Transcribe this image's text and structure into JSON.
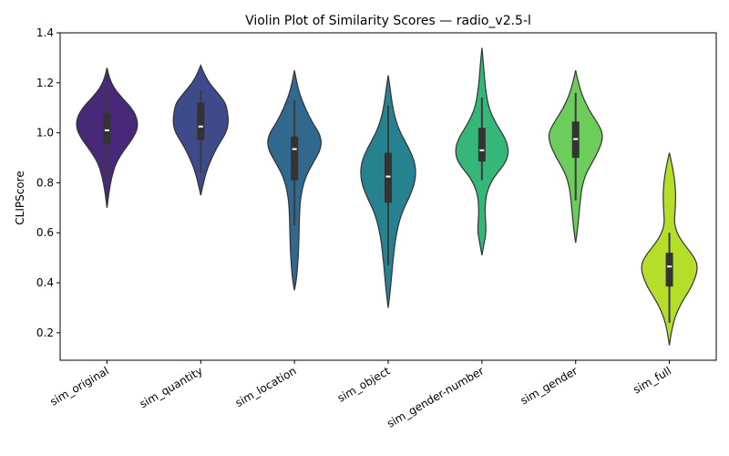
{
  "chart_data": {
    "type": "violin",
    "title": "Violin Plot of Similarity Scores — radio_v2.5-l",
    "xlabel": "",
    "ylabel": "CLIPScore",
    "ylim": [
      0.09,
      1.4
    ],
    "yticks": [
      0.2,
      0.4,
      0.6,
      0.8,
      1.0,
      1.2,
      1.4
    ],
    "ytick_labels": [
      "0.2",
      "0.4",
      "0.6",
      "0.8",
      "1.0",
      "1.2",
      "1.4"
    ],
    "grid": false,
    "legend": "none",
    "categories": [
      "sim_original",
      "sim_quantity",
      "sim_location",
      "sim_object",
      "sim_gender-number",
      "sim_gender",
      "sim_full"
    ],
    "colors": [
      "#482878",
      "#3e4a89",
      "#31688e",
      "#26828e",
      "#35b779",
      "#6ccd5a",
      "#b5de2b"
    ],
    "series": [
      {
        "median": 1.01,
        "q1": 0.955,
        "q3": 1.08,
        "whisker_low": 0.8,
        "whisker_high": 1.18,
        "profile": [
          [
            0.7,
            0.0
          ],
          [
            0.76,
            0.05
          ],
          [
            0.82,
            0.12
          ],
          [
            0.88,
            0.24
          ],
          [
            0.93,
            0.45
          ],
          [
            0.98,
            0.7
          ],
          [
            1.02,
            0.82
          ],
          [
            1.06,
            0.8
          ],
          [
            1.1,
            0.65
          ],
          [
            1.14,
            0.4
          ],
          [
            1.18,
            0.18
          ],
          [
            1.22,
            0.06
          ],
          [
            1.26,
            0.0
          ]
        ]
      },
      {
        "median": 1.025,
        "q1": 0.97,
        "q3": 1.12,
        "whisker_low": 0.84,
        "whisker_high": 1.17,
        "profile": [
          [
            0.75,
            0.0
          ],
          [
            0.79,
            0.06
          ],
          [
            0.84,
            0.14
          ],
          [
            0.88,
            0.24
          ],
          [
            0.94,
            0.42
          ],
          [
            1.0,
            0.68
          ],
          [
            1.04,
            0.74
          ],
          [
            1.08,
            0.72
          ],
          [
            1.12,
            0.66
          ],
          [
            1.16,
            0.45
          ],
          [
            1.2,
            0.22
          ],
          [
            1.24,
            0.08
          ],
          [
            1.27,
            0.0
          ]
        ]
      },
      {
        "median": 0.935,
        "q1": 0.81,
        "q3": 0.985,
        "whisker_low": 0.63,
        "whisker_high": 1.13,
        "profile": [
          [
            0.37,
            0.0
          ],
          [
            0.42,
            0.06
          ],
          [
            0.5,
            0.1
          ],
          [
            0.58,
            0.12
          ],
          [
            0.66,
            0.13
          ],
          [
            0.74,
            0.16
          ],
          [
            0.82,
            0.28
          ],
          [
            0.88,
            0.5
          ],
          [
            0.94,
            0.72
          ],
          [
            0.99,
            0.7
          ],
          [
            1.04,
            0.48
          ],
          [
            1.1,
            0.28
          ],
          [
            1.16,
            0.13
          ],
          [
            1.21,
            0.05
          ],
          [
            1.25,
            0.0
          ]
        ]
      },
      {
        "median": 0.825,
        "q1": 0.72,
        "q3": 0.92,
        "whisker_low": 0.47,
        "whisker_high": 1.11,
        "profile": [
          [
            0.3,
            0.0
          ],
          [
            0.36,
            0.05
          ],
          [
            0.44,
            0.1
          ],
          [
            0.52,
            0.15
          ],
          [
            0.6,
            0.22
          ],
          [
            0.68,
            0.36
          ],
          [
            0.76,
            0.62
          ],
          [
            0.82,
            0.74
          ],
          [
            0.88,
            0.72
          ],
          [
            0.94,
            0.55
          ],
          [
            1.0,
            0.32
          ],
          [
            1.06,
            0.18
          ],
          [
            1.12,
            0.1
          ],
          [
            1.18,
            0.05
          ],
          [
            1.23,
            0.0
          ]
        ]
      },
      {
        "median": 0.93,
        "q1": 0.885,
        "q3": 1.02,
        "whisker_low": 0.81,
        "whisker_high": 1.14,
        "profile": [
          [
            0.51,
            0.0
          ],
          [
            0.56,
            0.06
          ],
          [
            0.6,
            0.11
          ],
          [
            0.64,
            0.1
          ],
          [
            0.7,
            0.08
          ],
          [
            0.76,
            0.12
          ],
          [
            0.82,
            0.3
          ],
          [
            0.88,
            0.64
          ],
          [
            0.93,
            0.72
          ],
          [
            0.98,
            0.62
          ],
          [
            1.04,
            0.36
          ],
          [
            1.1,
            0.18
          ],
          [
            1.18,
            0.09
          ],
          [
            1.26,
            0.05
          ],
          [
            1.34,
            0.0
          ]
        ]
      },
      {
        "median": 0.975,
        "q1": 0.9,
        "q3": 1.045,
        "whisker_low": 0.73,
        "whisker_high": 1.16,
        "profile": [
          [
            0.56,
            0.0
          ],
          [
            0.6,
            0.04
          ],
          [
            0.66,
            0.08
          ],
          [
            0.72,
            0.12
          ],
          [
            0.78,
            0.16
          ],
          [
            0.84,
            0.28
          ],
          [
            0.9,
            0.52
          ],
          [
            0.96,
            0.7
          ],
          [
            1.0,
            0.72
          ],
          [
            1.04,
            0.58
          ],
          [
            1.1,
            0.32
          ],
          [
            1.16,
            0.15
          ],
          [
            1.21,
            0.06
          ],
          [
            1.25,
            0.0
          ]
        ]
      },
      {
        "median": 0.465,
        "q1": 0.385,
        "q3": 0.52,
        "whisker_low": 0.24,
        "whisker_high": 0.6,
        "profile": [
          [
            0.15,
            0.0
          ],
          [
            0.2,
            0.05
          ],
          [
            0.26,
            0.14
          ],
          [
            0.32,
            0.32
          ],
          [
            0.38,
            0.58
          ],
          [
            0.44,
            0.74
          ],
          [
            0.48,
            0.74
          ],
          [
            0.52,
            0.58
          ],
          [
            0.56,
            0.36
          ],
          [
            0.6,
            0.2
          ],
          [
            0.64,
            0.13
          ],
          [
            0.68,
            0.15
          ],
          [
            0.74,
            0.17
          ],
          [
            0.8,
            0.15
          ],
          [
            0.86,
            0.09
          ],
          [
            0.92,
            0.0
          ]
        ]
      }
    ]
  }
}
